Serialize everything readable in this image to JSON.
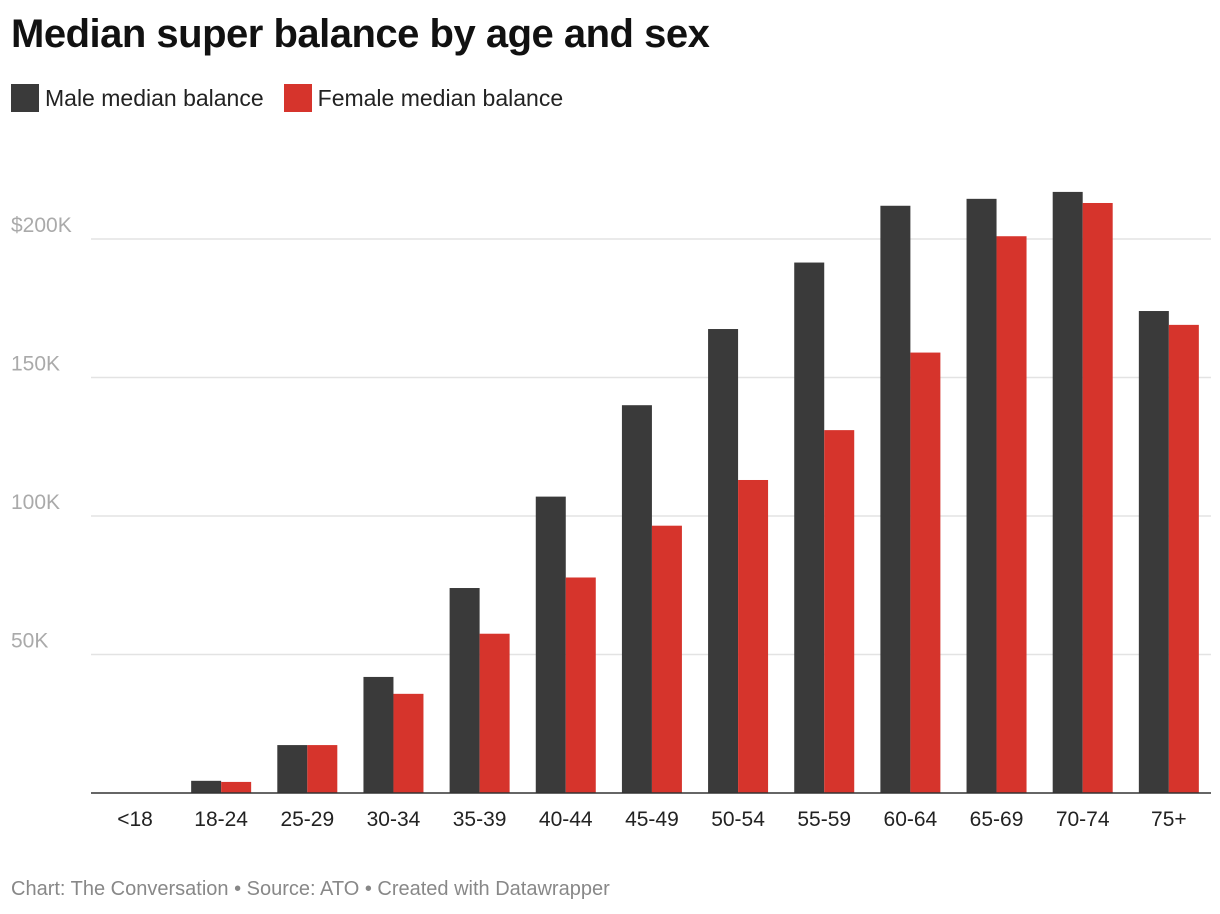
{
  "chart_data": {
    "type": "bar",
    "title": "Median super balance by age and sex",
    "categories": [
      "<18",
      "18-24",
      "25-29",
      "30-34",
      "35-39",
      "40-44",
      "45-49",
      "50-54",
      "55-59",
      "60-64",
      "65-69",
      "70-74",
      "75+"
    ],
    "series": [
      {
        "name": "Male median balance",
        "color": "#3a3a3a",
        "values": [
          0,
          4400,
          17300,
          41900,
          74000,
          107000,
          140000,
          167500,
          191500,
          212000,
          214500,
          217000,
          174000
        ]
      },
      {
        "name": "Female median balance",
        "color": "#d6342c",
        "values": [
          0,
          4000,
          17300,
          35800,
          57500,
          77800,
          96500,
          113000,
          131000,
          159000,
          201000,
          213000,
          169000
        ]
      }
    ],
    "yticks": [
      {
        "value": 50000,
        "label": "50K"
      },
      {
        "value": 100000,
        "label": "100K"
      },
      {
        "value": 150000,
        "label": "150K"
      },
      {
        "value": 200000,
        "label": "$200K"
      }
    ],
    "ylim": [
      0,
      235000
    ],
    "grid": true,
    "legend_position": "top-left"
  },
  "footer": {
    "text": "Chart: The Conversation • Source: ATO • Created with Datawrapper"
  }
}
